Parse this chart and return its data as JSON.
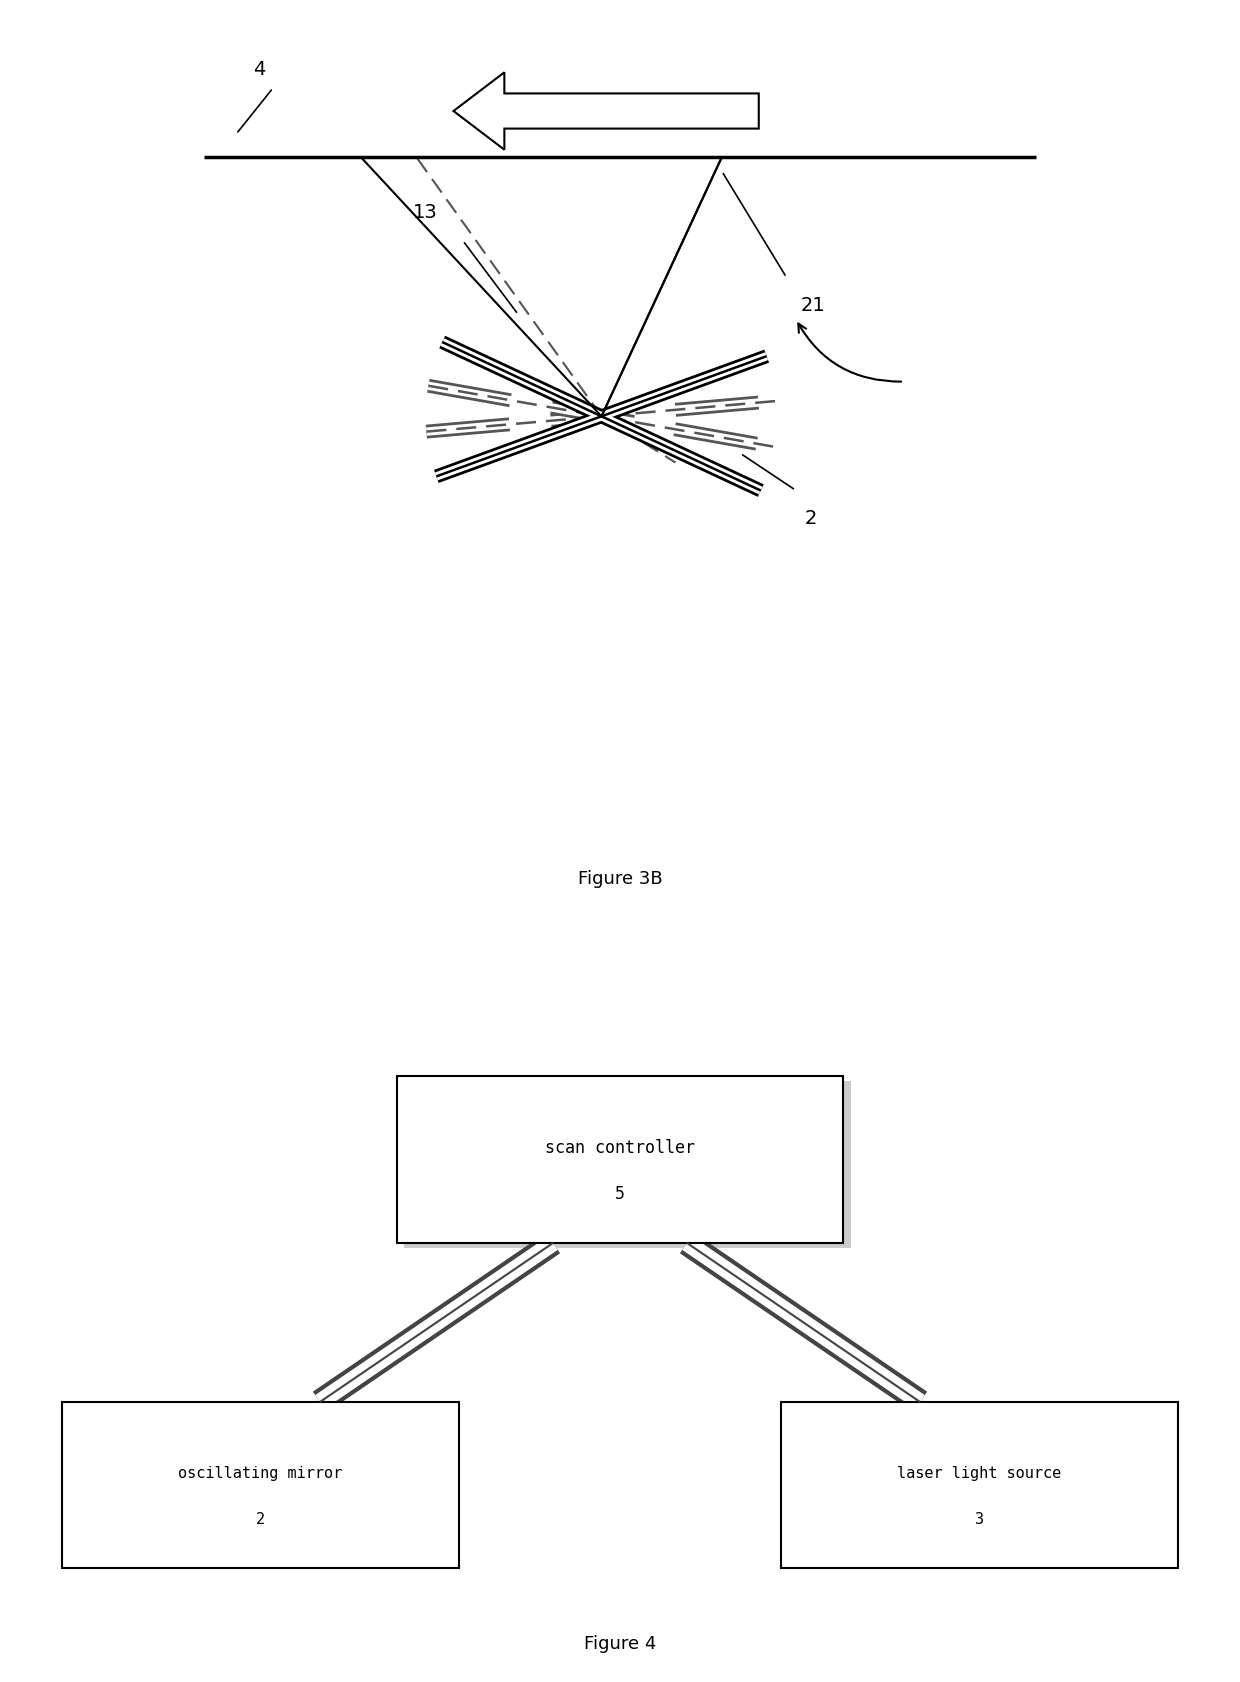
{
  "fig3b_title": "Figure 3B",
  "fig4_title": "Figure 4",
  "bg_color": "#ffffff",
  "line_color": "#000000",
  "dashed_color": "#555555",
  "label_4": "4",
  "label_13": "13",
  "label_21": "21",
  "label_2": "2",
  "box_scan_controller": "scan controller\n5",
  "box_oscillating": "oscillating mirror\n2",
  "box_laser": "laser light source\n3",
  "font_size_label": 14,
  "font_size_box": 13,
  "font_size_caption": 13
}
